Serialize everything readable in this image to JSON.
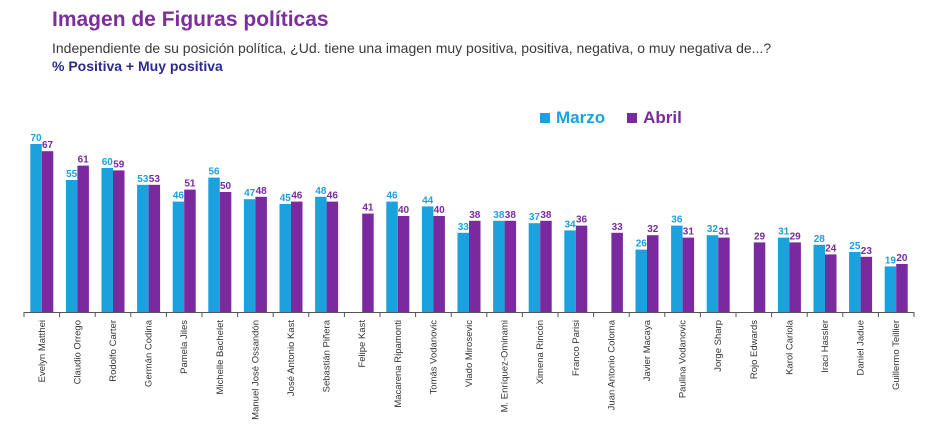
{
  "title": "Imagen de Figuras políticas",
  "subtitle": "Independiente de su posición política, ¿Ud. tiene una imagen muy positiva, positiva, negativa, o muy negativa de...?",
  "metric_label": "% Positiva + Muy positiva",
  "colors": {
    "marzo": "#1ba1de",
    "abril": "#7a2a9e",
    "axis": "#555555"
  },
  "chart_data": {
    "type": "bar",
    "title": "Imagen de Figuras políticas",
    "ylabel": "% Positiva + Muy positiva",
    "ylim": [
      0,
      72
    ],
    "grid": false,
    "legend_position": "top-right",
    "categories": [
      "Evelyn Matthei",
      "Claudio Orrego",
      "Rodolfo Carter",
      "Germán Codina",
      "Pamela Jiles",
      "Michelle Bachelet",
      "Manuel José Ossandón",
      "José Antonio Kast",
      "Sebastián Piñera",
      "Felipe Kast",
      "Macarena Ripamonti",
      "Tomás Vodanovic",
      "Vlado Mirosevic",
      "M. Enríquez-Ominami",
      "Ximena Rincón",
      "Franco Parisi",
      "Juan Antonio Coloma",
      "Javier Macaya",
      "Paulina Vodanovic",
      "Jorge Sharp",
      "Rojo Edwards",
      "Karol Cariola",
      "Iraci Hassler",
      "Daniel Jadue",
      "Guillermo Teillier"
    ],
    "series": [
      {
        "name": "Marzo",
        "values": [
          70,
          55,
          60,
          53,
          46,
          56,
          47,
          45,
          48,
          null,
          46,
          44,
          33,
          38,
          37,
          34,
          null,
          26,
          36,
          32,
          null,
          31,
          28,
          25,
          19
        ]
      },
      {
        "name": "Abril",
        "values": [
          67,
          61,
          59,
          53,
          51,
          50,
          48,
          46,
          46,
          41,
          40,
          40,
          38,
          38,
          38,
          36,
          33,
          32,
          31,
          31,
          29,
          29,
          24,
          23,
          20
        ]
      }
    ]
  }
}
